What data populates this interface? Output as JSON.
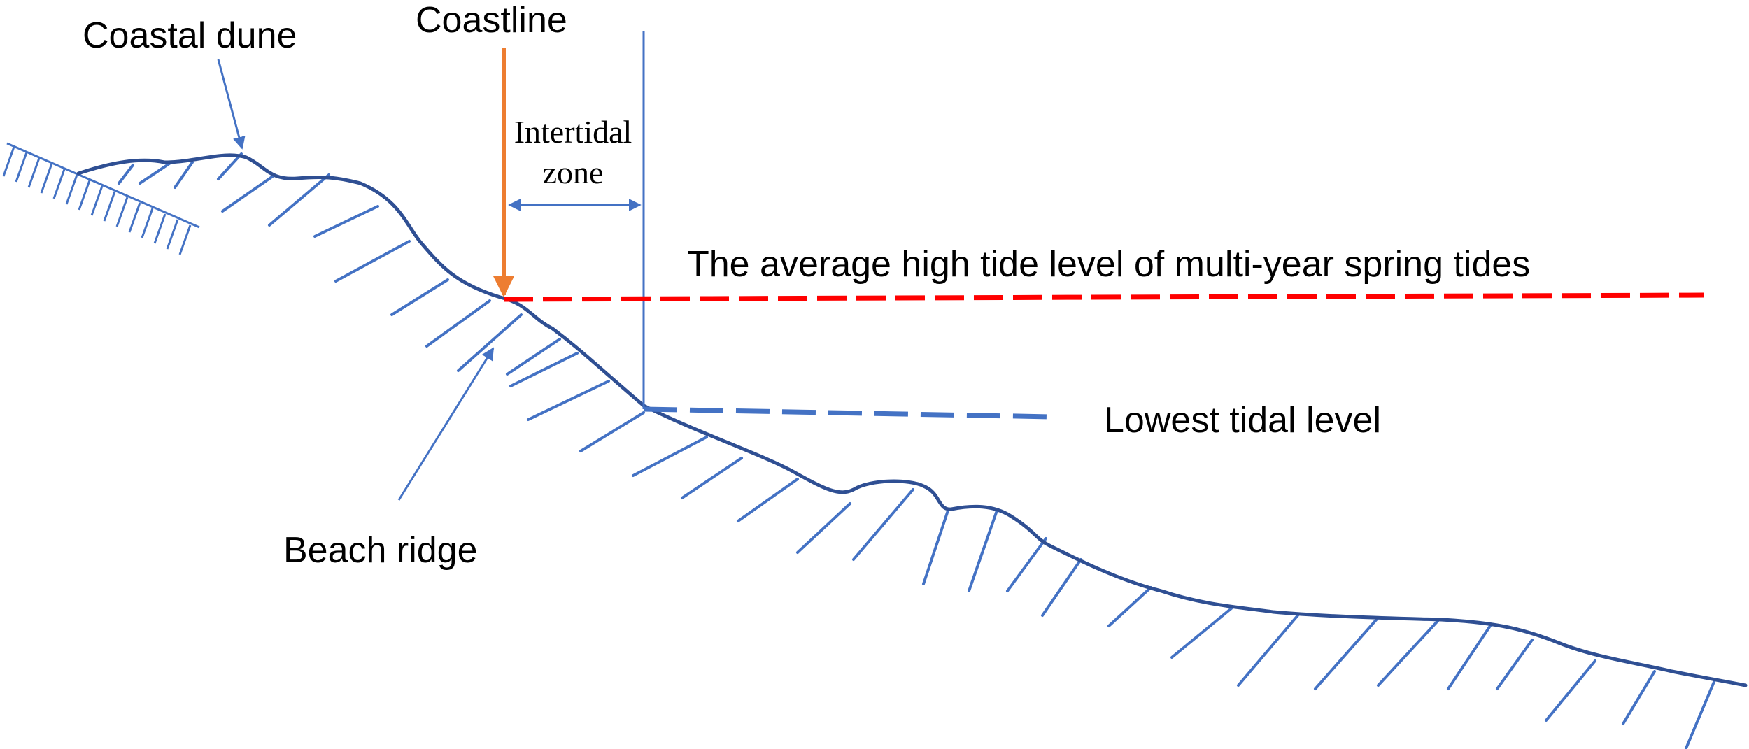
{
  "labels": {
    "coastal_dune": "Coastal dune",
    "coastline": "Coastline",
    "intertidal_line1": "Intertidal",
    "intertidal_line2": "zone",
    "high_tide_level": "The average high tide level of multi-year spring tides",
    "lowest_tidal_level": "Lowest tidal level",
    "beach_ridge": "Beach ridge"
  },
  "colors": {
    "profile": "#2F4F93",
    "hatch": "#4472C4",
    "coastline_arrow": "#ED7D31",
    "high_tide_line": "#FF0000",
    "low_tide_line": "#4472C4",
    "text": "#000000"
  }
}
